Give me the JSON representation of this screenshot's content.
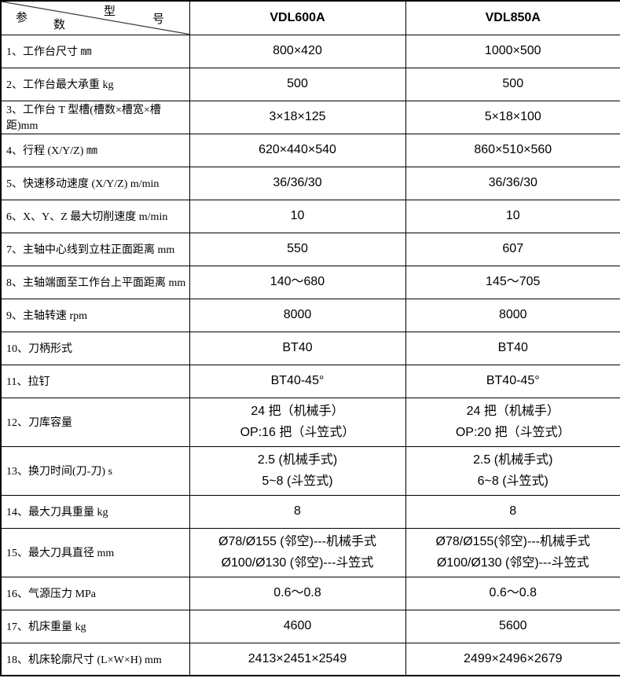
{
  "header": {
    "diagonal_cell": {
      "bottom_left_label_char1": "参",
      "bottom_left_label_char2": "数",
      "top_right_label_char1": "型",
      "top_right_label_char2": "号"
    },
    "columns": [
      "VDL600A",
      "VDL850A"
    ]
  },
  "colors": {
    "border": "#000000",
    "diagonal_line": "#3c3c3c",
    "background": "#ffffff",
    "text": "#000000"
  },
  "rows": [
    {
      "label": "1、工作台尺寸 ㎜",
      "vdl600a": [
        "800×420"
      ],
      "vdl850a": [
        "1000×500"
      ],
      "tall": false
    },
    {
      "label": "2、工作台最大承重 kg",
      "vdl600a": [
        "500"
      ],
      "vdl850a": [
        "500"
      ],
      "tall": false
    },
    {
      "label": "3、工作台 T 型槽(槽数×槽宽×槽距)mm",
      "vdl600a": [
        "3×18×125"
      ],
      "vdl850a": [
        "5×18×100"
      ],
      "tall": false
    },
    {
      "label": "4、行程  (X/Y/Z) ㎜",
      "vdl600a": [
        "620×440×540"
      ],
      "vdl850a": [
        "860×510×560"
      ],
      "tall": false
    },
    {
      "label": "5、快速移动速度 (X/Y/Z) m/min",
      "vdl600a": [
        "36/36/30"
      ],
      "vdl850a": [
        "36/36/30"
      ],
      "tall": false
    },
    {
      "label": "6、X、Y、Z 最大切削速度 m/min",
      "vdl600a": [
        "10"
      ],
      "vdl850a": [
        "10"
      ],
      "tall": false
    },
    {
      "label": "7、主轴中心线到立柱正面距离 mm",
      "vdl600a": [
        "550"
      ],
      "vdl850a": [
        "607"
      ],
      "tall": false
    },
    {
      "label": "8、主轴端面至工作台上平面距离 mm",
      "vdl600a": [
        "140～680"
      ],
      "vdl850a": [
        "145～705"
      ],
      "tall": false
    },
    {
      "label": "9、主轴转速 rpm",
      "vdl600a": [
        "8000"
      ],
      "vdl850a": [
        "8000"
      ],
      "tall": false
    },
    {
      "label": "10、刀柄形式",
      "vdl600a": [
        "BT40"
      ],
      "vdl850a": [
        "BT40"
      ],
      "tall": false
    },
    {
      "label": "11、拉钉",
      "vdl600a": [
        "BT40-45°"
      ],
      "vdl850a": [
        "BT40-45°"
      ],
      "tall": false
    },
    {
      "label": "12、刀库容量",
      "vdl600a": [
        "24 把（机械手）",
        "OP:16 把（斗笠式）"
      ],
      "vdl850a": [
        "24 把（机械手）",
        "OP:20 把（斗笠式）"
      ],
      "tall": true
    },
    {
      "label": "13、换刀时间(刀-刀) s",
      "vdl600a": [
        "2.5 (机械手式)",
        "5~8 (斗笠式)"
      ],
      "vdl850a": [
        "2.5 (机械手式)",
        "6~8 (斗笠式)"
      ],
      "tall": true
    },
    {
      "label": "14、最大刀具重量  kg",
      "vdl600a": [
        "8"
      ],
      "vdl850a": [
        "8"
      ],
      "tall": false
    },
    {
      "label": "15、最大刀具直径 mm",
      "vdl600a": [
        "Ø78/Ø155 (邻空)---机械手式",
        "Ø100/Ø130 (邻空)---斗笠式"
      ],
      "vdl850a": [
        "Ø78/Ø155(邻空)---机械手式",
        "Ø100/Ø130 (邻空)---斗笠式"
      ],
      "tall": true
    },
    {
      "label": "16、气源压力  MPa",
      "vdl600a": [
        "0.6～0.8"
      ],
      "vdl850a": [
        "0.6～0.8"
      ],
      "tall": false
    },
    {
      "label": "17、机床重量  kg",
      "vdl600a": [
        "4600"
      ],
      "vdl850a": [
        "5600"
      ],
      "tall": false
    },
    {
      "label": "18、机床轮廓尺寸 (L×W×H) mm",
      "vdl600a": [
        "2413×2451×2549"
      ],
      "vdl850a": [
        "2499×2496×2679"
      ],
      "tall": false
    }
  ]
}
